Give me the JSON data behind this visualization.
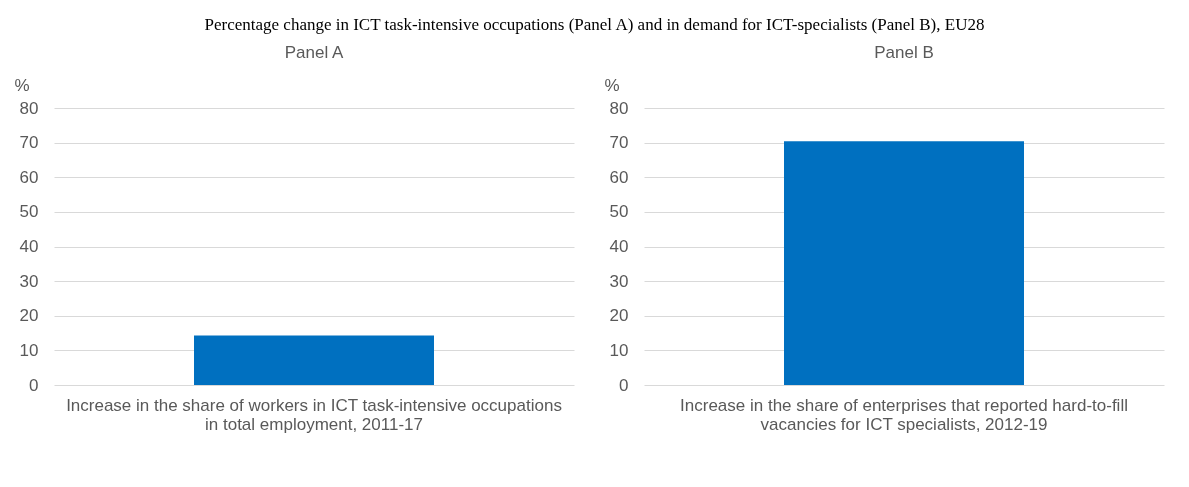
{
  "chart_data": [
    {
      "type": "bar",
      "title": "Panel A",
      "annotations": [
        "Percentage change in ICT task-intensive occupations (Panel A) and in demand for ICT-specialists (Panel B), EU28"
      ],
      "ylabel": "%",
      "categories": [
        "Increase in the share of workers in ICT task-intensive occupations in total employment, 2011-17"
      ],
      "values": [
        14.3
      ],
      "color": "#0070c0",
      "ylim": [
        0,
        80
      ],
      "yticks": [
        0,
        10,
        20,
        30,
        40,
        50,
        60,
        70,
        80
      ],
      "grid": "y"
    },
    {
      "type": "bar",
      "title": "Panel B",
      "ylabel": "%",
      "categories": [
        "Increase in the share of enterprises that reported hard-to-fill vacancies for ICT specialists, 2012-19"
      ],
      "values": [
        70.4
      ],
      "color": "#0070c0",
      "ylim": [
        0,
        80
      ],
      "yticks": [
        0,
        10,
        20,
        30,
        40,
        50,
        60,
        70,
        80
      ],
      "grid": "y"
    }
  ]
}
